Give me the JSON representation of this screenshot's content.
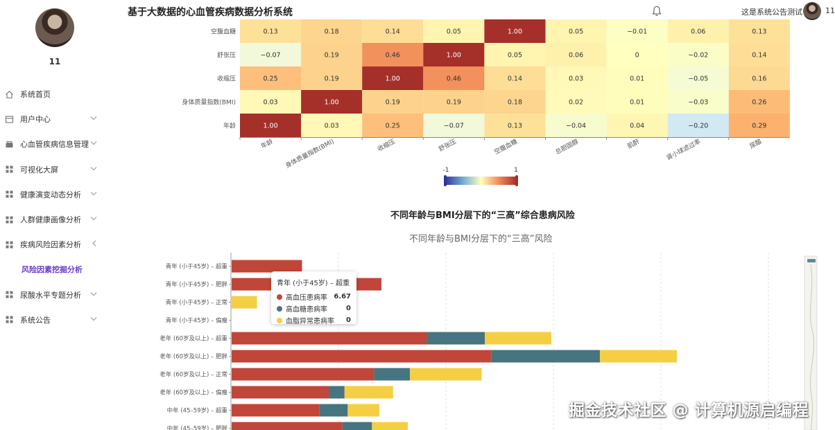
{
  "user": {
    "name": "11"
  },
  "header": {
    "title": "基于大数据的心血管疾病数据分析系统",
    "notice": "这是系统公告测试",
    "username": "11"
  },
  "sidebar": {
    "items": [
      {
        "label": "系统首页",
        "icon": "home-icon",
        "expandable": false
      },
      {
        "label": "用户中心",
        "icon": "user-doc-icon",
        "expandable": true,
        "chevron": "down"
      },
      {
        "label": "心血管疾病信息管理",
        "icon": "box-icon",
        "expandable": true,
        "chevron": "down"
      },
      {
        "label": "可视化大屏",
        "icon": "grid-icon",
        "expandable": true,
        "chevron": "down"
      },
      {
        "label": "健康演变动态分析",
        "icon": "grid-icon",
        "expandable": true,
        "chevron": "down"
      },
      {
        "label": "人群健康画像分析",
        "icon": "grid-icon",
        "expandable": true,
        "chevron": "down"
      },
      {
        "label": "疾病风险因素分析",
        "icon": "grid-icon",
        "expandable": true,
        "chevron": "left"
      },
      {
        "label": "风险因素挖掘分析",
        "icon": "",
        "sub": true
      },
      {
        "label": "尿酸水平专题分析",
        "icon": "grid-icon",
        "expandable": true,
        "chevron": "down"
      },
      {
        "label": "系统公告",
        "icon": "grid-icon",
        "expandable": true,
        "chevron": "down"
      }
    ]
  },
  "chart_data": [
    {
      "type": "heatmap",
      "x_categories": [
        "年龄",
        "身体质量指数(BMI)",
        "收缩压",
        "舒张压",
        "空腹血糖",
        "总胆固醇",
        "肌酐",
        "肾小球滤过率",
        "尿酸"
      ],
      "y_categories": [
        "年龄",
        "身体质量指数(BMI)",
        "收缩压",
        "舒张压",
        "空腹血糖"
      ],
      "values": [
        [
          1.0,
          0.03,
          0.25,
          -0.07,
          0.13,
          -0.04,
          0.04,
          -0.2,
          0.29
        ],
        [
          0.03,
          1.0,
          0.19,
          0.19,
          0.18,
          0.02,
          0.01,
          -0.03,
          0.26
        ],
        [
          0.25,
          0.19,
          1.0,
          0.46,
          0.14,
          0.03,
          0.01,
          -0.05,
          0.16
        ],
        [
          -0.07,
          0.19,
          0.46,
          1.0,
          0.05,
          0.06,
          0,
          -0.02,
          0.14
        ],
        [
          0.13,
          0.18,
          0.14,
          0.05,
          1.0,
          0.05,
          -0.01,
          0.06,
          0.13
        ]
      ],
      "visual_map": {
        "min": "-1",
        "max": "1",
        "min_value": -1,
        "max_value": 1,
        "colors": [
          "#313695",
          "#ffffbf",
          "#a50026"
        ]
      }
    },
    {
      "type": "bar",
      "orientation": "horizontal",
      "stacked": true,
      "title": "不同年龄与BMI分层下的“三高”综合患病风险",
      "subtitle": "不同年龄与BMI分层下的“三高”风险",
      "categories": [
        "青年 (小于45岁) – 超重",
        "青年 (小于45岁) – 肥胖",
        "青年 (小于45岁) – 正常",
        "青年 (小于45岁) – 偏瘦",
        "老年 (60岁及以上) – 超重",
        "老年 (60岁及以上) – 肥胖",
        "老年 (60岁及以上) – 正常",
        "老年 (60岁及以上) – 偏瘦",
        "中年 (45–59岁) – 超重",
        "中年 (45–59岁) – 肥胖"
      ],
      "series": [
        {
          "name": "高血压患病率",
          "color": "#c1463a",
          "values": [
            6.67,
            14.2,
            0,
            0,
            18.5,
            24.6,
            13.5,
            9.2,
            8.3,
            10.5
          ]
        },
        {
          "name": "高血糖患病率",
          "color": "#467580",
          "values": [
            0,
            0,
            0,
            0,
            5.5,
            10.3,
            3.4,
            1.5,
            2.7,
            2.8
          ]
        },
        {
          "name": "血脂异常患病率",
          "color": "#f5cf43",
          "values": [
            0,
            0,
            2.4,
            0,
            6.3,
            7.3,
            6.8,
            4.6,
            3.0,
            3.4
          ]
        }
      ],
      "xlim": [
        0,
        53.7
      ],
      "tooltip": {
        "title": "青年 (小于45岁) – 超重",
        "values": [
          "6.67",
          "0",
          "0"
        ]
      }
    }
  ],
  "watermark": "掘金技术社区 @ 计算机源启编程"
}
